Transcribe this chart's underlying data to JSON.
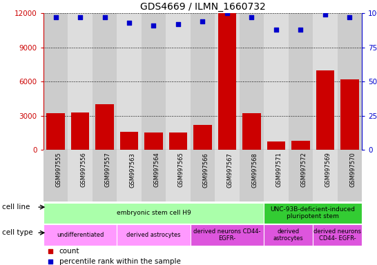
{
  "title": "GDS4669 / ILMN_1660732",
  "samples": [
    "GSM997555",
    "GSM997556",
    "GSM997557",
    "GSM997563",
    "GSM997564",
    "GSM997565",
    "GSM997566",
    "GSM997567",
    "GSM997568",
    "GSM997571",
    "GSM997572",
    "GSM997569",
    "GSM997570"
  ],
  "counts": [
    3200,
    3250,
    4000,
    1600,
    1500,
    1500,
    2200,
    12000,
    3200,
    700,
    800,
    7000,
    6200
  ],
  "percentiles": [
    97,
    97,
    97,
    93,
    91,
    92,
    94,
    100,
    97,
    88,
    88,
    99,
    97
  ],
  "bar_color": "#cc0000",
  "dot_color": "#0000cc",
  "ylim_left": [
    0,
    12000
  ],
  "ylim_right": [
    0,
    100
  ],
  "yticks_left": [
    0,
    3000,
    6000,
    9000,
    12000
  ],
  "yticks_right": [
    0,
    25,
    50,
    75,
    100
  ],
  "yticklabels_right": [
    "0",
    "25",
    "50",
    "75",
    "100%"
  ],
  "cell_line_labels": [
    {
      "text": "embryonic stem cell H9",
      "start": 0,
      "end": 8,
      "color": "#aaffaa"
    },
    {
      "text": "UNC-93B-deficient-induced\npluripotent stem",
      "start": 9,
      "end": 12,
      "color": "#33cc33"
    }
  ],
  "cell_type_labels": [
    {
      "text": "undifferentiated",
      "start": 0,
      "end": 2,
      "color": "#ff99ff"
    },
    {
      "text": "derived astrocytes",
      "start": 3,
      "end": 5,
      "color": "#ff99ff"
    },
    {
      "text": "derived neurons CD44-\nEGFR-",
      "start": 6,
      "end": 8,
      "color": "#dd55dd"
    },
    {
      "text": "derived\nastrocytes",
      "start": 9,
      "end": 10,
      "color": "#dd55dd"
    },
    {
      "text": "derived neurons\nCD44- EGFR-",
      "start": 11,
      "end": 12,
      "color": "#dd55dd"
    }
  ],
  "tick_color_left": "#cc0000",
  "tick_color_right": "#0000cc",
  "legend_count_color": "#cc0000",
  "legend_dot_color": "#0000cc",
  "col_bg_even": "#cccccc",
  "col_bg_odd": "#dddddd"
}
